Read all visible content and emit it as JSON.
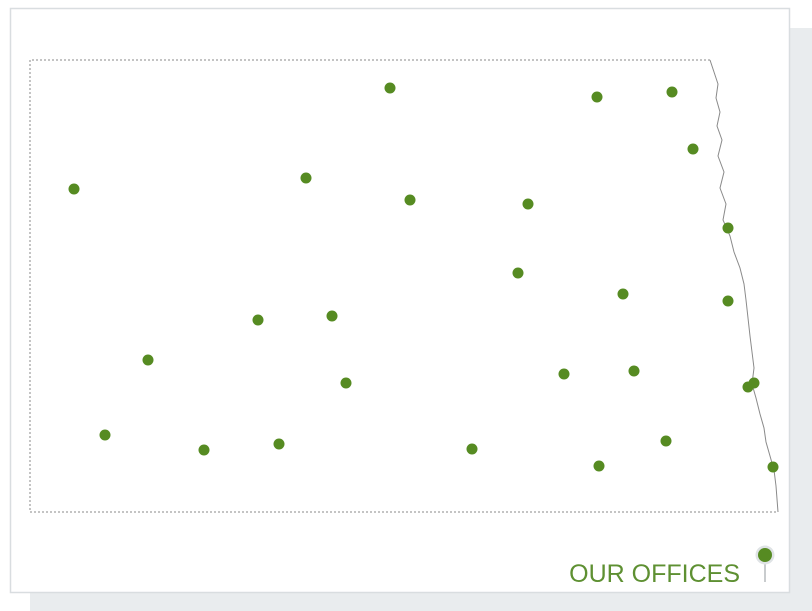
{
  "legend": {
    "title": "OUR OFFICES"
  }
}
